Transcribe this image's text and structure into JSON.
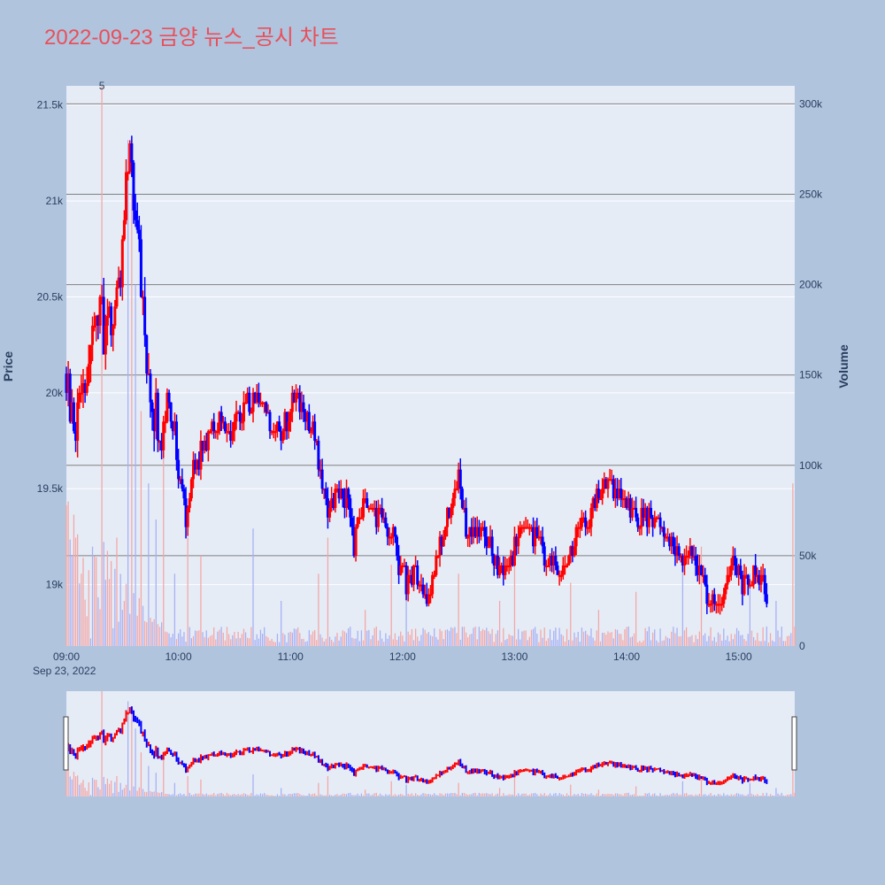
{
  "title": "2022-09-23 금양 뉴스_공시 차트",
  "chart_data": {
    "type": "candlestick",
    "title": "2022-09-23 금양 뉴스_공시 차트",
    "date_label": "Sep 23, 2022",
    "y_label": "Price",
    "y2_label": "Volume",
    "x_ticks": [
      "09:00",
      "10:00",
      "11:00",
      "12:00",
      "13:00",
      "14:00",
      "15:00"
    ],
    "y_ticks": [
      {
        "value": 19000,
        "label": "19k"
      },
      {
        "value": 19500,
        "label": "19.5k"
      },
      {
        "value": 20000,
        "label": "20k"
      },
      {
        "value": 20500,
        "label": "20.5k"
      },
      {
        "value": 21000,
        "label": "21k"
      },
      {
        "value": 21500,
        "label": "21.5k"
      }
    ],
    "y2_ticks": [
      {
        "value": 0,
        "label": "0"
      },
      {
        "value": 50000,
        "label": "50k"
      },
      {
        "value": 100000,
        "label": "100k"
      },
      {
        "value": 150000,
        "label": "150k"
      },
      {
        "value": 200000,
        "label": "200k"
      },
      {
        "value": 250000,
        "label": "250k"
      },
      {
        "value": 300000,
        "label": "300k"
      }
    ],
    "x_range": [
      "09:00",
      "15:30"
    ],
    "y_range": [
      18680,
      21600
    ],
    "y2_range": [
      0,
      310000
    ],
    "annotation": {
      "text": "5",
      "time": "09:19"
    },
    "up_color": "#ff0000",
    "down_color": "#0000ff",
    "price_path": [
      [
        "09:00",
        20100
      ],
      [
        "09:03",
        19900
      ],
      [
        "09:05",
        19700
      ],
      [
        "09:07",
        20050
      ],
      [
        "09:10",
        19950
      ],
      [
        "09:13",
        20200
      ],
      [
        "09:16",
        20350
      ],
      [
        "09:18",
        20500
      ],
      [
        "09:20",
        20250
      ],
      [
        "09:23",
        20400
      ],
      [
        "09:26",
        20450
      ],
      [
        "09:29",
        20650
      ],
      [
        "09:32",
        21100
      ],
      [
        "09:34",
        21300
      ],
      [
        "09:36",
        21050
      ],
      [
        "09:38",
        20800
      ],
      [
        "09:40",
        20550
      ],
      [
        "09:42",
        20300
      ],
      [
        "09:44",
        20050
      ],
      [
        "09:46",
        19850
      ],
      [
        "09:48",
        19950
      ],
      [
        "09:50",
        19700
      ],
      [
        "09:52",
        19850
      ],
      [
        "09:54",
        19950
      ],
      [
        "09:56",
        19850
      ],
      [
        "09:58",
        19800
      ],
      [
        "10:00",
        19600
      ],
      [
        "10:02",
        19500
      ],
      [
        "10:04",
        19350
      ],
      [
        "10:06",
        19500
      ],
      [
        "10:08",
        19700
      ],
      [
        "10:10",
        19650
      ],
      [
        "10:13",
        19700
      ],
      [
        "10:16",
        19750
      ],
      [
        "10:20",
        19850
      ],
      [
        "10:25",
        19800
      ],
      [
        "10:30",
        19850
      ],
      [
        "10:35",
        19900
      ],
      [
        "10:40",
        19950
      ],
      [
        "10:43",
        20000
      ],
      [
        "10:46",
        19900
      ],
      [
        "10:50",
        19800
      ],
      [
        "10:55",
        19800
      ],
      [
        "11:00",
        19900
      ],
      [
        "11:03",
        20000
      ],
      [
        "11:06",
        19900
      ],
      [
        "11:10",
        19850
      ],
      [
        "11:13",
        19750
      ],
      [
        "11:16",
        19600
      ],
      [
        "11:18",
        19450
      ],
      [
        "11:20",
        19350
      ],
      [
        "11:23",
        19450
      ],
      [
        "11:26",
        19500
      ],
      [
        "11:30",
        19450
      ],
      [
        "11:32",
        19300
      ],
      [
        "11:34",
        19200
      ],
      [
        "11:36",
        19350
      ],
      [
        "11:40",
        19450
      ],
      [
        "11:43",
        19400
      ],
      [
        "11:46",
        19350
      ],
      [
        "11:50",
        19300
      ],
      [
        "11:55",
        19250
      ],
      [
        "12:00",
        19050
      ],
      [
        "12:03",
        19000
      ],
      [
        "12:06",
        19100
      ],
      [
        "12:10",
        19000
      ],
      [
        "12:13",
        18900
      ],
      [
        "12:15",
        18900
      ],
      [
        "12:17",
        19050
      ],
      [
        "12:20",
        19200
      ],
      [
        "12:23",
        19300
      ],
      [
        "12:27",
        19450
      ],
      [
        "12:30",
        19550
      ],
      [
        "12:33",
        19350
      ],
      [
        "12:36",
        19250
      ],
      [
        "12:40",
        19300
      ],
      [
        "12:45",
        19250
      ],
      [
        "12:50",
        19100
      ],
      [
        "12:55",
        19100
      ],
      [
        "13:00",
        19200
      ],
      [
        "13:05",
        19300
      ],
      [
        "13:10",
        19250
      ],
      [
        "13:15",
        19200
      ],
      [
        "13:20",
        19100
      ],
      [
        "13:25",
        19050
      ],
      [
        "13:30",
        19150
      ],
      [
        "13:35",
        19300
      ],
      [
        "13:40",
        19350
      ],
      [
        "13:45",
        19450
      ],
      [
        "13:50",
        19550
      ],
      [
        "13:53",
        19500
      ],
      [
        "13:56",
        19450
      ],
      [
        "14:00",
        19400
      ],
      [
        "14:05",
        19350
      ],
      [
        "14:10",
        19350
      ],
      [
        "14:15",
        19350
      ],
      [
        "14:20",
        19300
      ],
      [
        "14:25",
        19200
      ],
      [
        "14:30",
        19150
      ],
      [
        "14:35",
        19150
      ],
      [
        "14:40",
        19050
      ],
      [
        "14:43",
        18950
      ],
      [
        "14:46",
        18900
      ],
      [
        "14:50",
        18850
      ],
      [
        "14:53",
        19000
      ],
      [
        "14:57",
        19100
      ],
      [
        "15:00",
        19050
      ],
      [
        "15:03",
        19000
      ],
      [
        "15:06",
        19000
      ],
      [
        "15:09",
        19100
      ],
      [
        "15:12",
        19050
      ],
      [
        "15:15",
        18950
      ]
    ],
    "volume_spikes": [
      [
        "09:01",
        80000
      ],
      [
        "09:05",
        60000
      ],
      [
        "09:08",
        40000
      ],
      [
        "09:14",
        55000
      ],
      [
        "09:19",
        310000
      ],
      [
        "09:27",
        60000
      ],
      [
        "09:33",
        280000
      ],
      [
        "09:35",
        250000
      ],
      [
        "09:37",
        200000
      ],
      [
        "09:40",
        130000
      ],
      [
        "09:44",
        90000
      ],
      [
        "09:48",
        70000
      ],
      [
        "09:52",
        120000
      ],
      [
        "09:58",
        40000
      ],
      [
        "10:05",
        60000
      ],
      [
        "10:12",
        50000
      ],
      [
        "10:40",
        65000
      ],
      [
        "10:55",
        25000
      ],
      [
        "11:15",
        40000
      ],
      [
        "11:20",
        60000
      ],
      [
        "11:40",
        20000
      ],
      [
        "11:54",
        45000
      ],
      [
        "12:02",
        35000
      ],
      [
        "12:30",
        40000
      ],
      [
        "12:52",
        25000
      ],
      [
        "13:00",
        60000
      ],
      [
        "13:30",
        35000
      ],
      [
        "13:45",
        20000
      ],
      [
        "14:05",
        30000
      ],
      [
        "14:30",
        45000
      ],
      [
        "14:40",
        55000
      ],
      [
        "15:06",
        40000
      ],
      [
        "15:20",
        25000
      ],
      [
        "15:29",
        90000
      ]
    ]
  }
}
